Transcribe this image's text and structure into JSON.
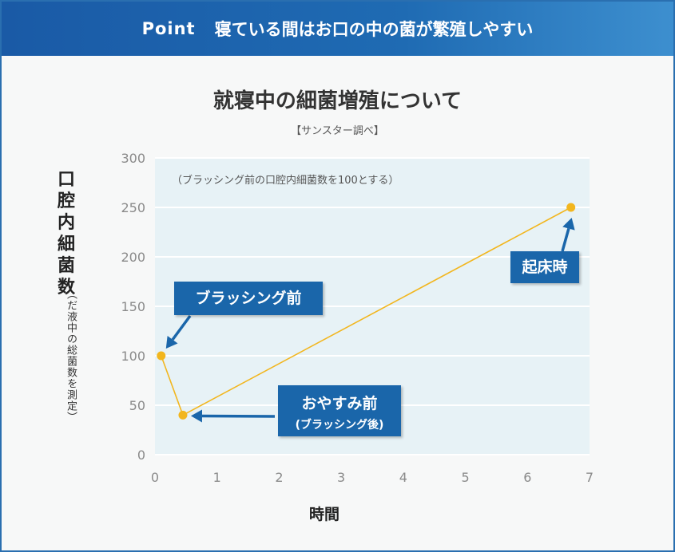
{
  "banner": {
    "point_label": "Point",
    "heading": "寝ている間はお口の中の菌が繁殖しやすい"
  },
  "colors": {
    "banner_blue": "#1f6bb3",
    "callout_blue": "#1a66aa",
    "line_yellow": "#f2b61e",
    "plot_bg": "#e7f2f6"
  },
  "chart_data": {
    "type": "line",
    "title": "就寝中の細菌増殖について",
    "subtitle": "【サンスター調べ】",
    "note": "（ブラッシング前の口腔内細菌数を100とする）",
    "xlabel": "時間",
    "ylabel": "口腔内細菌数",
    "ylabel_sub": "（だ液中の総菌数を測定）",
    "xlim": [
      0,
      7
    ],
    "ylim": [
      0,
      300
    ],
    "x_ticks": [
      0,
      1,
      2,
      3,
      4,
      5,
      6,
      7
    ],
    "y_ticks": [
      0,
      50,
      100,
      150,
      200,
      250,
      300
    ],
    "grid": "horizontal",
    "series": [
      {
        "x": [
          0.1,
          0.45,
          6.7
        ],
        "y": [
          100,
          40,
          250
        ]
      }
    ],
    "annotations": [
      {
        "text": "ブラッシング前"
      },
      {
        "text": "おやすみ前",
        "subtext": "(ブラッシング後)"
      },
      {
        "text": "起床時"
      }
    ]
  }
}
